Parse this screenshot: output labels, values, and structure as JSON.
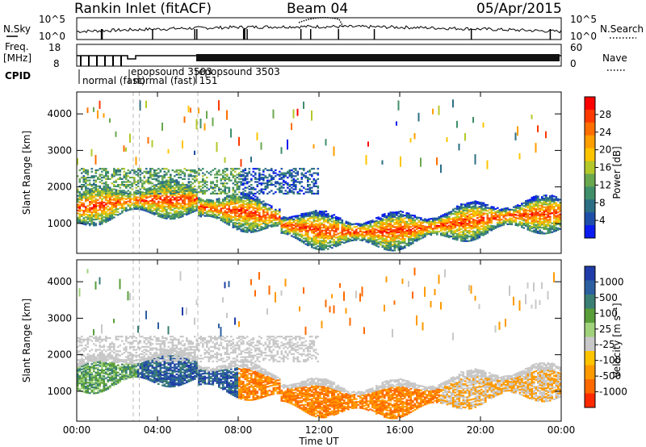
{
  "header": {
    "station": "Rankin Inlet (fitACF)",
    "beam": "Beam 04",
    "date": "05/Apr/2015"
  },
  "top_panels": {
    "nsky_label": "N.Sky",
    "nsearch_label": "N.Search",
    "freq_label": "Freq.",
    "freq_unit": "[MHz]",
    "nave_label": "Nave",
    "cpid_label": "CPID",
    "nsky_ticks": [
      "10^5",
      "10^0"
    ],
    "nsearch_ticks": [
      "10^5",
      "10^0"
    ],
    "freq_ticks": [
      "18",
      "8"
    ],
    "nave_ticks": [
      "60",
      "0"
    ],
    "cpid_labels": [
      "normal (fast)",
      "normal (fast) 151",
      "epopsound 3503",
      "epopsound 3503"
    ]
  },
  "chart_data": {
    "type": "heatmap",
    "xlabel": "Time UT",
    "x_ticks": [
      "00:00",
      "04:00",
      "08:00",
      "12:00",
      "16:00",
      "20:00",
      "00:00"
    ],
    "xlim_hours": [
      0,
      24
    ],
    "ylabel": "Slant Range [km]",
    "y_ticks": [
      1000,
      2000,
      3000,
      4000
    ],
    "ylim_km": [
      180,
      4600
    ],
    "panels": [
      {
        "name": "power",
        "colorbar_label": "Power [dB]",
        "colorbar_ticks": [
          "28",
          "24",
          "20",
          "16",
          "12",
          "8",
          "4"
        ],
        "colors": [
          "#ff0000",
          "#ff3a00",
          "#ff6e00",
          "#ff9e00",
          "#ffc400",
          "#b4c82a",
          "#6aa84f",
          "#3f8f6a",
          "#2c6f84",
          "#1e4fa8",
          "#0a1cf0"
        ]
      },
      {
        "name": "velocity",
        "colorbar_label": "Velocity [m s⁻¹]",
        "colorbar_ticks": [
          "1000",
          "500",
          "100",
          "25",
          "-25",
          "-100",
          "-500",
          "-1000"
        ],
        "colors": [
          "#1f3ca8",
          "#2c5fa0",
          "#3a7e74",
          "#5a9e3a",
          "#9fd27a",
          "#c8c8c8",
          "#ffc400",
          "#ff9a00",
          "#ff6a00",
          "#ff2a00"
        ]
      }
    ]
  }
}
